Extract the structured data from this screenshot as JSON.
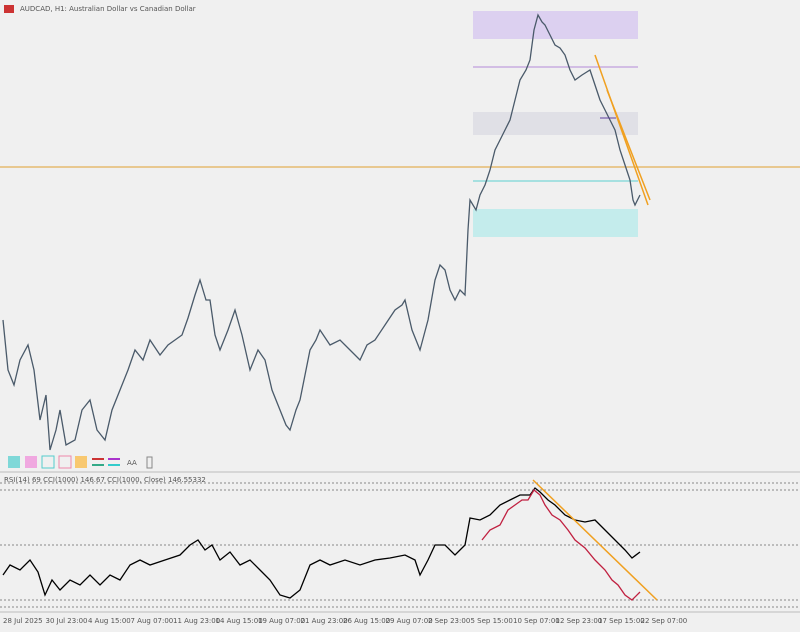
{
  "header": {
    "title": "AUDCAD, H1:  Australian Dollar vs Canadian Dollar"
  },
  "indicator": {
    "label": "RSI(14) 69 CCI(1000) 146.67 CCI(1000, Close) 146.55332"
  },
  "x_axis": {
    "labels": [
      "28 Jul 2025",
      "30 Jul 23:00",
      "4 Aug 15:00",
      "7 Aug 07:00",
      "11 Aug 23:00",
      "14 Aug 15:00",
      "19 Aug 07:00",
      "21 Aug 23:00",
      "26 Aug 15:00",
      "29 Aug 07:00",
      "2 Sep 23:00",
      "5 Sep 15:00",
      "10 Sep 07:00",
      "12 Sep 23:00",
      "17 Sep 15:00",
      "22 Sep 07:00"
    ]
  },
  "toolbar": {
    "font_button": "AA"
  }
}
